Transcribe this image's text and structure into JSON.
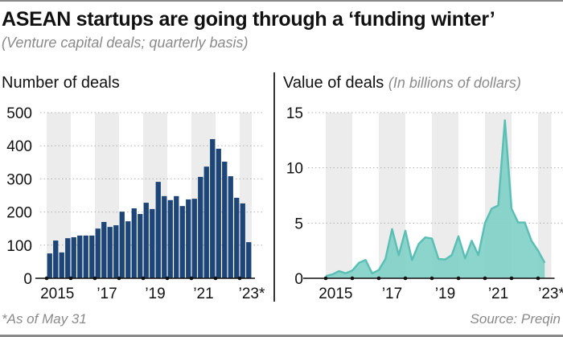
{
  "header": {
    "title": "ASEAN startups are going through a ‘funding winter’",
    "subtitle": "(Venture capital deals; quarterly basis)"
  },
  "footer": {
    "footnote": "*As of May 31",
    "source": "Source: Preqin"
  },
  "colors": {
    "bar": "#1d4577",
    "bar_gap": "#9cc1ee",
    "area_fill": "#7fd0c8",
    "area_line": "#5cbfb6",
    "band": "#ececec",
    "grid": "#b0b0b0"
  },
  "chart_data": [
    {
      "type": "bar",
      "title": "Number of deals",
      "unit_label": "",
      "xlabel": "",
      "ylabel": "",
      "ylim": [
        0,
        500
      ],
      "yticks": [
        0,
        100,
        200,
        300,
        400,
        500
      ],
      "ytick_labels": [
        "0",
        "100",
        "200",
        "300",
        "400",
        "500"
      ],
      "xtick_labels": [
        "2015",
        "’17",
        "’19",
        "’21",
        "’23*"
      ],
      "grid": "horizontal-dotted",
      "shaded_years": [
        "2015",
        "2017",
        "2019",
        "2021",
        "2023"
      ],
      "categories": [
        "2015Q1",
        "2015Q2",
        "2015Q3",
        "2015Q4",
        "2016Q1",
        "2016Q2",
        "2016Q3",
        "2016Q4",
        "2017Q1",
        "2017Q2",
        "2017Q3",
        "2017Q4",
        "2018Q1",
        "2018Q2",
        "2018Q3",
        "2018Q4",
        "2019Q1",
        "2019Q2",
        "2019Q3",
        "2019Q4",
        "2020Q1",
        "2020Q2",
        "2020Q3",
        "2020Q4",
        "2021Q1",
        "2021Q2",
        "2021Q3",
        "2021Q4",
        "2022Q1",
        "2022Q2",
        "2022Q3",
        "2022Q4",
        "2023Q1",
        "2023Q2*"
      ],
      "values": [
        75,
        114,
        78,
        121,
        124,
        129,
        129,
        129,
        150,
        170,
        155,
        160,
        201,
        172,
        211,
        194,
        228,
        209,
        291,
        248,
        236,
        248,
        218,
        238,
        240,
        306,
        337,
        420,
        391,
        352,
        308,
        243,
        226,
        109
      ]
    },
    {
      "type": "area",
      "title": "Value of deals",
      "unit_label": "(In billions of dollars)",
      "xlabel": "",
      "ylabel": "",
      "ylim": [
        0,
        15
      ],
      "yticks": [
        0,
        5,
        10,
        15
      ],
      "ytick_labels": [
        "0",
        "5",
        "10",
        "15"
      ],
      "xtick_labels": [
        "2015",
        "’17",
        "’19",
        "’21",
        "’23*"
      ],
      "grid": "horizontal-dotted",
      "shaded_years": [
        "2015",
        "2017",
        "2019",
        "2021",
        "2023"
      ],
      "categories": [
        "2015Q1",
        "2015Q2",
        "2015Q3",
        "2015Q4",
        "2016Q1",
        "2016Q2",
        "2016Q3",
        "2016Q4",
        "2017Q1",
        "2017Q2",
        "2017Q3",
        "2017Q4",
        "2018Q1",
        "2018Q2",
        "2018Q3",
        "2018Q4",
        "2019Q1",
        "2019Q2",
        "2019Q3",
        "2019Q4",
        "2020Q1",
        "2020Q2",
        "2020Q3",
        "2020Q4",
        "2021Q1",
        "2021Q2",
        "2021Q3",
        "2021Q4",
        "2022Q1",
        "2022Q2",
        "2022Q3",
        "2022Q4",
        "2023Q1",
        "2023Q2*"
      ],
      "values": [
        0.2,
        0.35,
        0.65,
        0.45,
        0.7,
        1.4,
        1.65,
        0.45,
        0.75,
        1.75,
        4.45,
        2.1,
        4.3,
        1.65,
        3.1,
        3.7,
        3.6,
        1.75,
        1.7,
        2.1,
        3.8,
        1.8,
        3.4,
        2.1,
        5.0,
        6.3,
        6.6,
        14.3,
        6.3,
        5.05,
        5.05,
        3.4,
        2.5,
        1.4
      ]
    }
  ]
}
